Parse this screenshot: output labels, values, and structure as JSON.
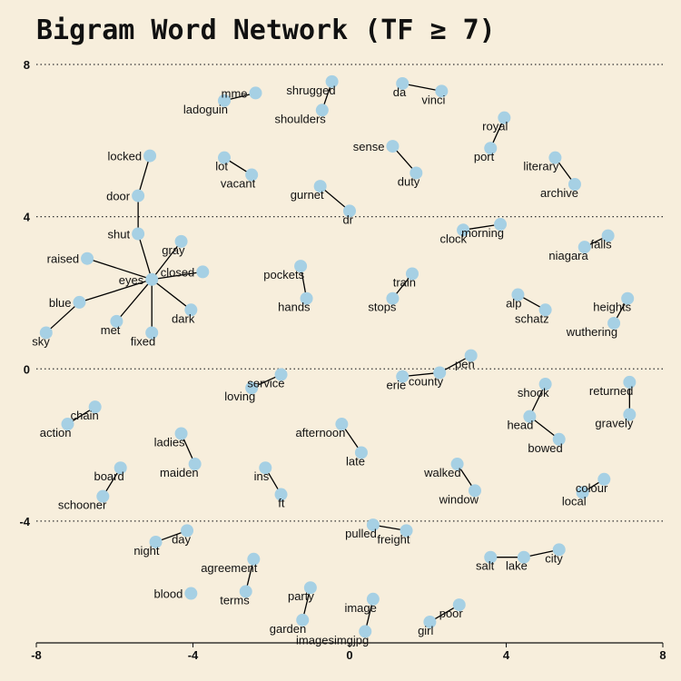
{
  "chart_data": {
    "type": "scatter",
    "title": "Bigram Word Network (TF ≥ 7)",
    "xlim": [
      -8,
      8
    ],
    "ylim": [
      -7.2,
      8
    ],
    "x_ticks": [
      -8,
      -4,
      0,
      4,
      8
    ],
    "y_ticks": [
      -4,
      0,
      4,
      8
    ],
    "x_tick_labels": [
      "-8",
      "-4",
      "0",
      "4",
      "8"
    ],
    "y_tick_labels": [
      "-4",
      "0",
      "4",
      "8"
    ],
    "grid": "horizontal dotted at y ticks",
    "node_color": "#a6d0e4",
    "edge_color": "#000000",
    "nodes": [
      {
        "id": "eyes",
        "x": -5.05,
        "y": 2.35
      },
      {
        "id": "door",
        "x": -5.4,
        "y": 4.55
      },
      {
        "id": "locked",
        "x": -5.1,
        "y": 5.6
      },
      {
        "id": "shut",
        "x": -5.4,
        "y": 3.55
      },
      {
        "id": "gray",
        "x": -4.3,
        "y": 3.35
      },
      {
        "id": "raised",
        "x": -6.7,
        "y": 2.9
      },
      {
        "id": "closed",
        "x": -3.75,
        "y": 2.55
      },
      {
        "id": "blue",
        "x": -6.9,
        "y": 1.75
      },
      {
        "id": "sky",
        "x": -7.75,
        "y": 0.95
      },
      {
        "id": "met",
        "x": -5.95,
        "y": 1.25
      },
      {
        "id": "dark",
        "x": -4.05,
        "y": 1.55
      },
      {
        "id": "fixed",
        "x": -5.05,
        "y": 0.95
      },
      {
        "id": "mme",
        "x": -2.4,
        "y": 7.25
      },
      {
        "id": "ladoguin",
        "x": -3.2,
        "y": 7.05
      },
      {
        "id": "shrugged",
        "x": -0.45,
        "y": 7.55
      },
      {
        "id": "shoulders",
        "x": -0.7,
        "y": 6.8
      },
      {
        "id": "da",
        "x": 1.35,
        "y": 7.5
      },
      {
        "id": "vinci",
        "x": 2.35,
        "y": 7.3
      },
      {
        "id": "royal",
        "x": 3.95,
        "y": 6.6
      },
      {
        "id": "port",
        "x": 3.6,
        "y": 5.8
      },
      {
        "id": "sense",
        "x": 1.1,
        "y": 5.85
      },
      {
        "id": "duty",
        "x": 1.7,
        "y": 5.15
      },
      {
        "id": "lot",
        "x": -3.2,
        "y": 5.55
      },
      {
        "id": "vacant",
        "x": -2.5,
        "y": 5.1
      },
      {
        "id": "literary",
        "x": 5.25,
        "y": 5.55
      },
      {
        "id": "archive",
        "x": 5.75,
        "y": 4.85
      },
      {
        "id": "gurnet",
        "x": -0.75,
        "y": 4.8
      },
      {
        "id": "dr",
        "x": 0,
        "y": 4.15
      },
      {
        "id": "morning",
        "x": 3.85,
        "y": 3.8
      },
      {
        "id": "clock",
        "x": 2.9,
        "y": 3.65
      },
      {
        "id": "falls",
        "x": 6.6,
        "y": 3.5
      },
      {
        "id": "niagara",
        "x": 6.0,
        "y": 3.2
      },
      {
        "id": "pockets",
        "x": -1.25,
        "y": 2.7
      },
      {
        "id": "hands",
        "x": -1.1,
        "y": 1.85
      },
      {
        "id": "train",
        "x": 1.6,
        "y": 2.5
      },
      {
        "id": "stops",
        "x": 1.1,
        "y": 1.85
      },
      {
        "id": "alp",
        "x": 4.3,
        "y": 1.95
      },
      {
        "id": "schatz",
        "x": 5.0,
        "y": 1.55
      },
      {
        "id": "heights",
        "x": 7.1,
        "y": 1.85
      },
      {
        "id": "wuthering",
        "x": 6.75,
        "y": 1.2
      },
      {
        "id": "pen",
        "x": 3.1,
        "y": 0.35
      },
      {
        "id": "county",
        "x": 2.3,
        "y": -0.1
      },
      {
        "id": "erie",
        "x": 1.35,
        "y": -0.2
      },
      {
        "id": "service",
        "x": -1.75,
        "y": -0.15
      },
      {
        "id": "loving",
        "x": -2.5,
        "y": -0.5
      },
      {
        "id": "shook",
        "x": 5.0,
        "y": -0.4
      },
      {
        "id": "head",
        "x": 4.6,
        "y": -1.25
      },
      {
        "id": "bowed",
        "x": 5.35,
        "y": -1.85
      },
      {
        "id": "returned",
        "x": 7.15,
        "y": -0.35
      },
      {
        "id": "gravely",
        "x": 7.15,
        "y": -1.2
      },
      {
        "id": "chain",
        "x": -6.5,
        "y": -1.0
      },
      {
        "id": "action",
        "x": -7.2,
        "y": -1.45
      },
      {
        "id": "ladies",
        "x": -4.3,
        "y": -1.7
      },
      {
        "id": "maiden",
        "x": -3.95,
        "y": -2.5
      },
      {
        "id": "afternoon",
        "x": -0.2,
        "y": -1.45
      },
      {
        "id": "late",
        "x": 0.3,
        "y": -2.2
      },
      {
        "id": "walked",
        "x": 2.75,
        "y": -2.5
      },
      {
        "id": "window",
        "x": 3.2,
        "y": -3.2
      },
      {
        "id": "colour",
        "x": 6.5,
        "y": -2.9
      },
      {
        "id": "local",
        "x": 5.95,
        "y": -3.25
      },
      {
        "id": "board",
        "x": -5.85,
        "y": -2.6
      },
      {
        "id": "schooner",
        "x": -6.3,
        "y": -3.35
      },
      {
        "id": "ins",
        "x": -2.15,
        "y": -2.6
      },
      {
        "id": "ft",
        "x": -1.75,
        "y": -3.3
      },
      {
        "id": "pulled",
        "x": 0.6,
        "y": -4.1
      },
      {
        "id": "freight",
        "x": 1.45,
        "y": -4.25
      },
      {
        "id": "day",
        "x": -4.15,
        "y": -4.25
      },
      {
        "id": "night",
        "x": -4.95,
        "y": -4.55
      },
      {
        "id": "city",
        "x": 5.35,
        "y": -4.75
      },
      {
        "id": "lake",
        "x": 4.45,
        "y": -4.95
      },
      {
        "id": "salt",
        "x": 3.6,
        "y": -4.95
      },
      {
        "id": "agreement",
        "x": -2.45,
        "y": -5.0
      },
      {
        "id": "terms",
        "x": -2.65,
        "y": -5.85
      },
      {
        "id": "blood",
        "x": -4.05,
        "y": -5.9
      },
      {
        "id": "party",
        "x": -1.0,
        "y": -5.75
      },
      {
        "id": "garden",
        "x": -1.2,
        "y": -6.6
      },
      {
        "id": "image",
        "x": 0.6,
        "y": -6.05
      },
      {
        "id": "imagesimgjpg",
        "x": 0.4,
        "y": -6.9
      },
      {
        "id": "poor",
        "x": 2.8,
        "y": -6.2
      },
      {
        "id": "girl",
        "x": 2.05,
        "y": -6.65
      }
    ],
    "edges": [
      [
        "eyes",
        "shut"
      ],
      [
        "shut",
        "door"
      ],
      [
        "door",
        "locked"
      ],
      [
        "eyes",
        "gray"
      ],
      [
        "eyes",
        "raised"
      ],
      [
        "eyes",
        "closed"
      ],
      [
        "eyes",
        "blue"
      ],
      [
        "blue",
        "sky"
      ],
      [
        "eyes",
        "met"
      ],
      [
        "eyes",
        "dark"
      ],
      [
        "eyes",
        "fixed"
      ],
      [
        "ladoguin",
        "mme"
      ],
      [
        "shrugged",
        "shoulders"
      ],
      [
        "da",
        "vinci"
      ],
      [
        "royal",
        "port"
      ],
      [
        "sense",
        "duty"
      ],
      [
        "lot",
        "vacant"
      ],
      [
        "literary",
        "archive"
      ],
      [
        "gurnet",
        "dr"
      ],
      [
        "clock",
        "morning"
      ],
      [
        "niagara",
        "falls"
      ],
      [
        "pockets",
        "hands"
      ],
      [
        "train",
        "stops"
      ],
      [
        "alp",
        "schatz"
      ],
      [
        "wuthering",
        "heights"
      ],
      [
        "erie",
        "county"
      ],
      [
        "county",
        "pen"
      ],
      [
        "loving",
        "service"
      ],
      [
        "shook",
        "head"
      ],
      [
        "head",
        "bowed"
      ],
      [
        "returned",
        "gravely"
      ],
      [
        "action",
        "chain"
      ],
      [
        "ladies",
        "maiden"
      ],
      [
        "afternoon",
        "late"
      ],
      [
        "walked",
        "window"
      ],
      [
        "local",
        "colour"
      ],
      [
        "board",
        "schooner"
      ],
      [
        "ins",
        "ft"
      ],
      [
        "pulled",
        "freight"
      ],
      [
        "night",
        "day"
      ],
      [
        "salt",
        "lake"
      ],
      [
        "lake",
        "city"
      ],
      [
        "agreement",
        "terms"
      ],
      [
        "party",
        "garden"
      ],
      [
        "image",
        "imagesimgjpg"
      ],
      [
        "poor",
        "girl"
      ]
    ],
    "labels": [
      {
        "node": "eyes",
        "text": "eyes",
        "pos": "left"
      },
      {
        "node": "door",
        "text": "door",
        "pos": "left"
      },
      {
        "node": "locked",
        "text": "locked",
        "pos": "left"
      },
      {
        "node": "shut",
        "text": "shut",
        "pos": "left"
      },
      {
        "node": "gray",
        "text": "gray",
        "pos": "below-left"
      },
      {
        "node": "raised",
        "text": "raised",
        "pos": "left"
      },
      {
        "node": "closed",
        "text": "closed",
        "pos": "left"
      },
      {
        "node": "blue",
        "text": "blue",
        "pos": "left"
      },
      {
        "node": "sky",
        "text": "sky",
        "pos": "below-left"
      },
      {
        "node": "met",
        "text": "met",
        "pos": "below-left"
      },
      {
        "node": "dark",
        "text": "dark",
        "pos": "below-left"
      },
      {
        "node": "fixed",
        "text": "fixed",
        "pos": "below-left"
      },
      {
        "node": "mme",
        "text": "mme",
        "pos": "left"
      },
      {
        "node": "ladoguin",
        "text": "ladoguin",
        "pos": "below-left"
      },
      {
        "node": "shrugged",
        "text": "shrugged",
        "pos": "below-left"
      },
      {
        "node": "shoulders",
        "text": "shoulders",
        "pos": "below-left"
      },
      {
        "node": "da",
        "text": "da",
        "pos": "below-left"
      },
      {
        "node": "vinci",
        "text": "vinci",
        "pos": "below-left"
      },
      {
        "node": "royal",
        "text": "royal",
        "pos": "below-left"
      },
      {
        "node": "port",
        "text": "port",
        "pos": "below-left"
      },
      {
        "node": "sense",
        "text": "sense",
        "pos": "left"
      },
      {
        "node": "duty",
        "text": "duty",
        "pos": "below-left"
      },
      {
        "node": "lot",
        "text": "lot",
        "pos": "below-left"
      },
      {
        "node": "vacant",
        "text": "vacant",
        "pos": "below-left"
      },
      {
        "node": "literary",
        "text": "literary",
        "pos": "below-left"
      },
      {
        "node": "archive",
        "text": "archive",
        "pos": "below-left"
      },
      {
        "node": "gurnet",
        "text": "gurnet",
        "pos": "below-left"
      },
      {
        "node": "dr",
        "text": "dr",
        "pos": "below-left"
      },
      {
        "node": "morning",
        "text": "morning",
        "pos": "below-left"
      },
      {
        "node": "clock",
        "text": "clock",
        "pos": "below-left"
      },
      {
        "node": "falls",
        "text": "falls",
        "pos": "below-left"
      },
      {
        "node": "niagara",
        "text": "niagara",
        "pos": "below-left"
      },
      {
        "node": "pockets",
        "text": "pockets",
        "pos": "below-left"
      },
      {
        "node": "hands",
        "text": "hands",
        "pos": "below-left"
      },
      {
        "node": "train",
        "text": "train",
        "pos": "below-left"
      },
      {
        "node": "stops",
        "text": "stops",
        "pos": "below-left"
      },
      {
        "node": "alp",
        "text": "alp",
        "pos": "below-left"
      },
      {
        "node": "schatz",
        "text": "schatz",
        "pos": "below-left"
      },
      {
        "node": "heights",
        "text": "heights",
        "pos": "below-left"
      },
      {
        "node": "wuthering",
        "text": "wuthering",
        "pos": "below-left"
      },
      {
        "node": "pen",
        "text": "pen",
        "pos": "below-left"
      },
      {
        "node": "county",
        "text": "county",
        "pos": "below-left"
      },
      {
        "node": "erie",
        "text": "erie",
        "pos": "below-left"
      },
      {
        "node": "service",
        "text": "service",
        "pos": "below-left"
      },
      {
        "node": "loving",
        "text": "loving",
        "pos": "below-left"
      },
      {
        "node": "shook",
        "text": "shook",
        "pos": "below-left"
      },
      {
        "node": "head",
        "text": "head",
        "pos": "below-left"
      },
      {
        "node": "bowed",
        "text": "bowed",
        "pos": "below-left"
      },
      {
        "node": "returned",
        "text": "returned",
        "pos": "below-left"
      },
      {
        "node": "gravely",
        "text": "gravely",
        "pos": "below-left"
      },
      {
        "node": "chain",
        "text": "chain",
        "pos": "below-left"
      },
      {
        "node": "action",
        "text": "action",
        "pos": "below-left"
      },
      {
        "node": "ladies",
        "text": "ladies",
        "pos": "below-left"
      },
      {
        "node": "maiden",
        "text": "maiden",
        "pos": "below-left"
      },
      {
        "node": "afternoon",
        "text": "afternoon",
        "pos": "below-left"
      },
      {
        "node": "late",
        "text": "late",
        "pos": "below-left"
      },
      {
        "node": "walked",
        "text": "walked",
        "pos": "below-left"
      },
      {
        "node": "window",
        "text": "window",
        "pos": "below-left"
      },
      {
        "node": "colour",
        "text": "colour",
        "pos": "below-left"
      },
      {
        "node": "local",
        "text": "local",
        "pos": "below-left"
      },
      {
        "node": "board",
        "text": "board",
        "pos": "below-left"
      },
      {
        "node": "schooner",
        "text": "schooner",
        "pos": "below-left"
      },
      {
        "node": "ins",
        "text": "ins",
        "pos": "below-left"
      },
      {
        "node": "ft",
        "text": "ft",
        "pos": "below-left"
      },
      {
        "node": "pulled",
        "text": "pulled",
        "pos": "below-left"
      },
      {
        "node": "freight",
        "text": "freight",
        "pos": "below-left"
      },
      {
        "node": "day",
        "text": "day",
        "pos": "below-left"
      },
      {
        "node": "night",
        "text": "night",
        "pos": "below-left"
      },
      {
        "node": "city",
        "text": "city",
        "pos": "below-left"
      },
      {
        "node": "lake",
        "text": "lake",
        "pos": "below-left"
      },
      {
        "node": "salt",
        "text": "salt",
        "pos": "below-left"
      },
      {
        "node": "agreement",
        "text": "agreement",
        "pos": "below-left"
      },
      {
        "node": "terms",
        "text": "terms",
        "pos": "below-left"
      },
      {
        "node": "blood",
        "text": "blood",
        "pos": "left"
      },
      {
        "node": "party",
        "text": "party",
        "pos": "below-left"
      },
      {
        "node": "garden",
        "text": "garden",
        "pos": "below-left"
      },
      {
        "node": "image",
        "text": "image",
        "pos": "below-left"
      },
      {
        "node": "imagesimgjpg",
        "text": "imagesimgjpg",
        "pos": "below-left"
      },
      {
        "node": "poor",
        "text": "poor",
        "pos": "below-left"
      },
      {
        "node": "girl",
        "text": "girl",
        "pos": "below-left"
      }
    ]
  }
}
